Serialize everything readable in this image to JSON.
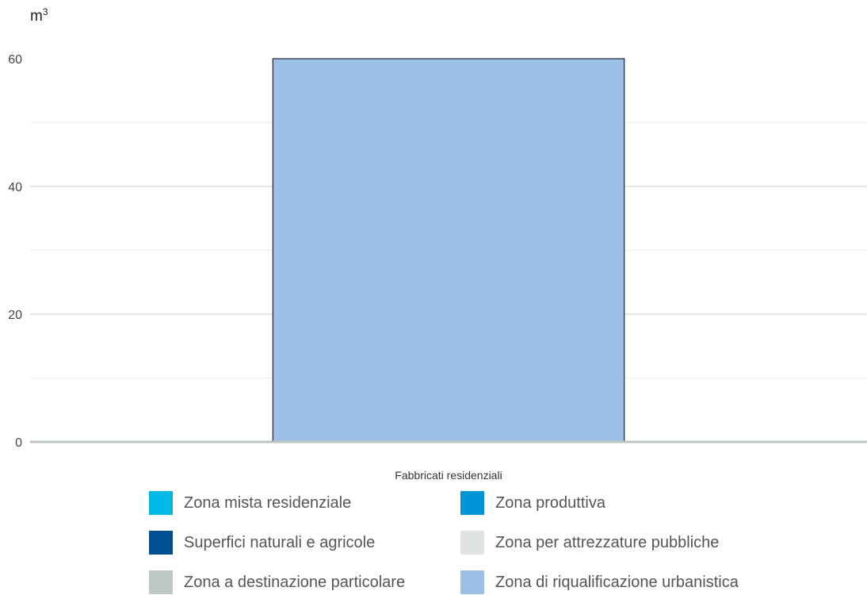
{
  "chart_data": {
    "type": "bar",
    "unit_label": {
      "base": "m",
      "sup": "3"
    },
    "categories": [
      "Fabbricati residenziali"
    ],
    "series": [
      {
        "name": "Zona mista residenziale",
        "color": "#00b8e6",
        "values": [
          0
        ]
      },
      {
        "name": "Zona produttiva",
        "color": "#0096d6",
        "values": [
          0
        ]
      },
      {
        "name": "Superfici naturali e agricole",
        "color": "#004f93",
        "values": [
          0
        ]
      },
      {
        "name": "Zona per attrezzature pubbliche",
        "color": "#dfe3e3",
        "values": [
          0
        ]
      },
      {
        "name": "Zona a destinazione particolare",
        "color": "#bec8c5",
        "values": [
          0
        ]
      },
      {
        "name": "Zona di riqualificazione urbanistica",
        "color": "#9bbfe6",
        "values": [
          60
        ]
      }
    ],
    "ylim": [
      0,
      60
    ],
    "yticks": [
      "0",
      "20",
      "40",
      "60"
    ],
    "grid": true,
    "legend_position": "bottom"
  }
}
